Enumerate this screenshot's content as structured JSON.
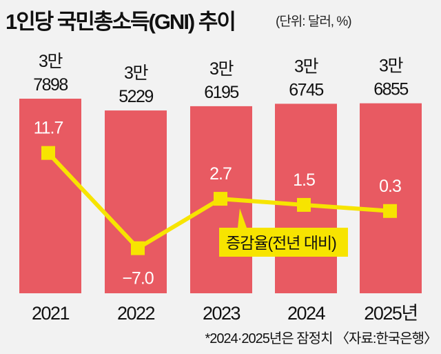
{
  "chart_data": {
    "type": "bar+line",
    "title": "1인당 국민총소득(GNI) 추이",
    "unit": "(단위: 달러, %)",
    "categories": [
      "2021",
      "2022",
      "2023",
      "2024",
      "2025년"
    ],
    "bar_series": {
      "values": [
        37898,
        35229,
        36195,
        36745,
        36855
      ],
      "labels_top": [
        "3만",
        "3만",
        "3만",
        "3만",
        "3만"
      ],
      "labels_bottom": [
        "7898",
        "5229",
        "6195",
        "6745",
        "6855"
      ],
      "color": "#e85a62"
    },
    "line_series": {
      "name": "증감율(전년 대비)",
      "values": [
        11.7,
        -7.0,
        2.7,
        1.5,
        0.3
      ],
      "labels": [
        "11.7",
        "−7.0",
        "2.7",
        "1.5",
        "0.3"
      ],
      "color": "#f7e400"
    },
    "note": "*2024·2025년은 잠정치  〈자료:한국은행〉",
    "grid": false
  }
}
